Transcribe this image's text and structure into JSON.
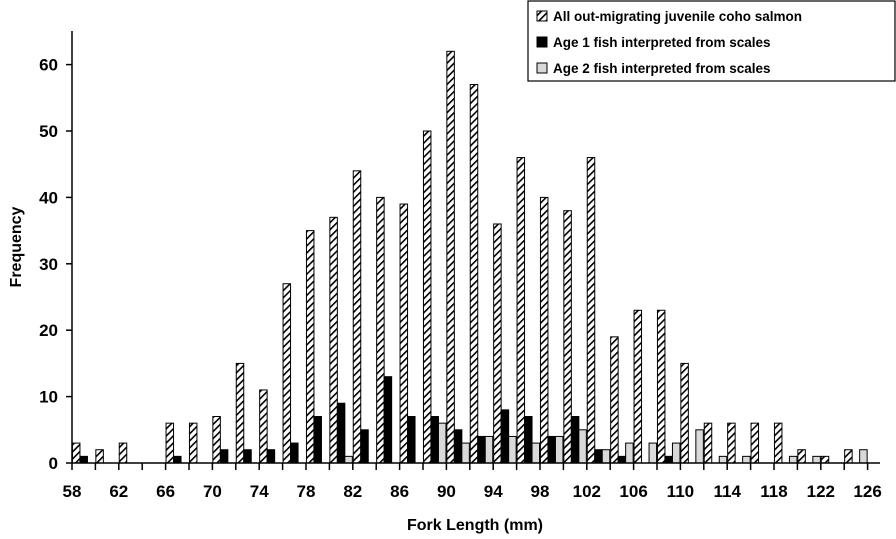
{
  "chart_data": {
    "type": "bar",
    "xlabel": "Fork Length (mm)",
    "ylabel": "Frequency",
    "ylim": [
      0,
      65
    ],
    "y_ticks": [
      0,
      10,
      20,
      30,
      40,
      50,
      60
    ],
    "x_tick_labels": [
      "58",
      "62",
      "66",
      "70",
      "74",
      "78",
      "82",
      "86",
      "90",
      "94",
      "98",
      "102",
      "106",
      "110",
      "114",
      "118",
      "122",
      "126"
    ],
    "categories": [
      59,
      61,
      63,
      65,
      67,
      69,
      71,
      73,
      75,
      77,
      79,
      81,
      83,
      85,
      87,
      89,
      91,
      93,
      95,
      97,
      99,
      101,
      103,
      105,
      107,
      109,
      111,
      113,
      115,
      117,
      119,
      121,
      123,
      125
    ],
    "legend_position": "top-right",
    "grid": false,
    "series": [
      {
        "name": "All out-migrating juvenile coho salmon",
        "pattern": "diagonal-hatch",
        "color": "#000000",
        "values": [
          3,
          2,
          3,
          0,
          6,
          6,
          7,
          15,
          11,
          27,
          35,
          37,
          44,
          40,
          39,
          50,
          62,
          57,
          36,
          46,
          40,
          38,
          46,
          19,
          23,
          23,
          15,
          6,
          6,
          6,
          6,
          2,
          1,
          2
        ]
      },
      {
        "name": "Age 1 fish interpreted from scales",
        "pattern": "solid",
        "color": "#000000",
        "values": [
          1,
          0,
          0,
          0,
          1,
          0,
          2,
          2,
          2,
          3,
          7,
          9,
          5,
          13,
          7,
          7,
          5,
          4,
          8,
          7,
          4,
          7,
          2,
          1,
          0,
          1,
          0,
          0,
          0,
          0,
          0,
          0,
          0,
          0
        ]
      },
      {
        "name": "Age 2 fish interpreted from scales",
        "pattern": "solid",
        "color": "#d9d9d9",
        "values": [
          0,
          0,
          0,
          0,
          0,
          0,
          0,
          0,
          0,
          0,
          0,
          1,
          0,
          0,
          0,
          6,
          3,
          4,
          4,
          3,
          4,
          5,
          2,
          3,
          3,
          3,
          5,
          1,
          1,
          0,
          1,
          1,
          0,
          2
        ]
      }
    ]
  }
}
